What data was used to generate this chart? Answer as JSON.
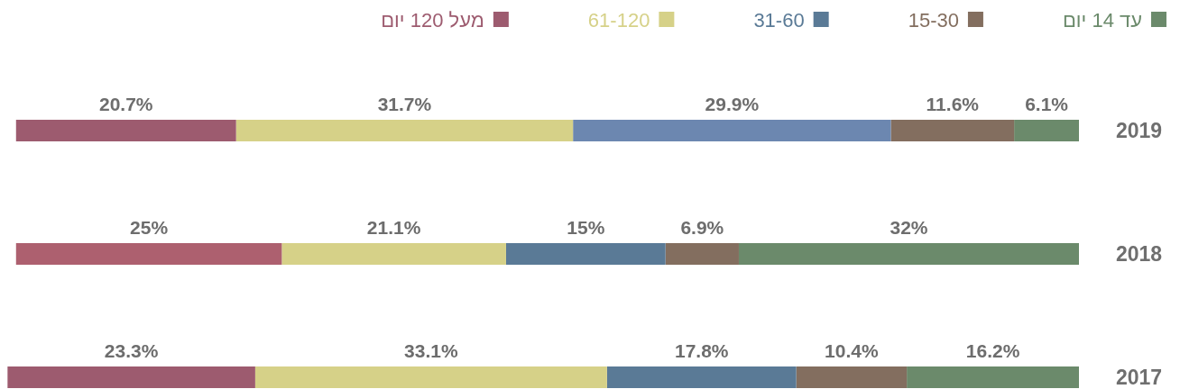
{
  "chart_data": {
    "type": "bar",
    "orientation": "horizontal",
    "stacked": true,
    "categories": [
      "2019",
      "2018",
      "2017"
    ],
    "xlim": [
      101,
      0
    ],
    "series": [
      {
        "name": "עד 14 יום",
        "color": "#6b8a6b",
        "values": [
          6.1,
          32,
          16.2
        ],
        "value_labels": [
          "6.1%",
          "32%",
          "16.2%"
        ]
      },
      {
        "name": "15-30",
        "color": "#836e5f",
        "values": [
          11.6,
          6.9,
          10.4
        ],
        "value_labels": [
          "11.6%",
          "6.9%",
          "10.4%"
        ]
      },
      {
        "name": "31-60",
        "color": "#5a7a96",
        "colors": [
          "#6c87b0",
          "#5a7a96",
          "#5a7a96"
        ],
        "values": [
          29.9,
          15,
          17.8
        ],
        "value_labels": [
          "29.9%",
          "15%",
          "17.8%"
        ]
      },
      {
        "name": "61-120",
        "color": "#d6d188",
        "values": [
          31.7,
          21.1,
          33.1
        ],
        "value_labels": [
          "31.7%",
          "21.1%",
          "33.1%"
        ]
      },
      {
        "name": "מעל 120 יום",
        "color": "#9d5b6f",
        "colors": [
          "#9d5b6f",
          "#ad606f",
          "#9d5b6f"
        ],
        "values": [
          20.7,
          25,
          23.3
        ],
        "value_labels": [
          "20.7%",
          "25%",
          "23.3%"
        ]
      }
    ],
    "legend": "top",
    "tick_labels": "y"
  }
}
